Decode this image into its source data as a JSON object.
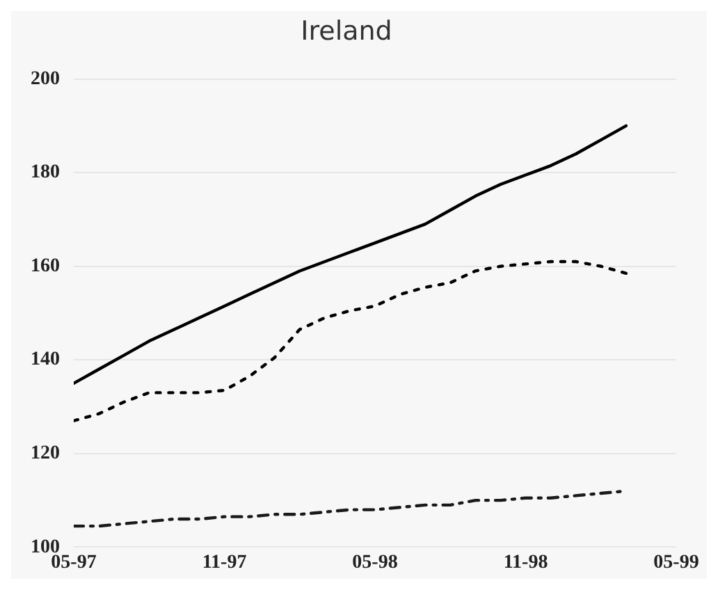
{
  "chart_data": {
    "type": "line",
    "title": "Ireland",
    "x": [
      "1997-05",
      "1997-06",
      "1997-07",
      "1997-08",
      "1997-09",
      "1997-10",
      "1997-11",
      "1997-12",
      "1998-01",
      "1998-02",
      "1998-03",
      "1998-04",
      "1998-05",
      "1998-06",
      "1998-07",
      "1998-08",
      "1998-09",
      "1998-10",
      "1998-11",
      "1998-12",
      "1999-01",
      "1999-02",
      "1999-03"
    ],
    "series": [
      {
        "color": "#000000",
        "line_style": "solid",
        "values": [
          135,
          138,
          141,
          144,
          146.5,
          149,
          151.5,
          154,
          156.5,
          159,
          161,
          163,
          165,
          167,
          169,
          172,
          175,
          177.5,
          179.5,
          181.5,
          184,
          187,
          190
        ]
      },
      {
        "color": "#000000",
        "line_style": "dotted",
        "values": [
          127,
          128.5,
          131,
          133,
          133,
          133,
          133.5,
          136.5,
          140.5,
          146.5,
          149,
          150.5,
          151.5,
          154,
          155.5,
          156.5,
          159,
          160,
          160.5,
          161,
          161,
          160,
          158.5
        ]
      },
      {
        "color": "#1a1a1a",
        "line_style": "dashed",
        "values": [
          104.5,
          104.5,
          105,
          105.5,
          106,
          106,
          106.5,
          106.5,
          107,
          107,
          107.5,
          108,
          108,
          108.5,
          109,
          109,
          110,
          110,
          110.5,
          110.5,
          111,
          111.5,
          112
        ]
      }
    ],
    "xlim": [
      "1997-05",
      "1999-05"
    ],
    "xticks": [
      {
        "value": "1997-05",
        "label": "05-97"
      },
      {
        "value": "1997-11",
        "label": "11-97"
      },
      {
        "value": "1998-05",
        "label": "05-98"
      },
      {
        "value": "1998-11",
        "label": "11-98"
      },
      {
        "value": "1999-05",
        "label": "05-99"
      }
    ],
    "ylim": [
      100,
      200
    ],
    "yticks": [
      100,
      120,
      140,
      160,
      180,
      200
    ],
    "grid": "y",
    "legend": false,
    "marker": "none"
  }
}
